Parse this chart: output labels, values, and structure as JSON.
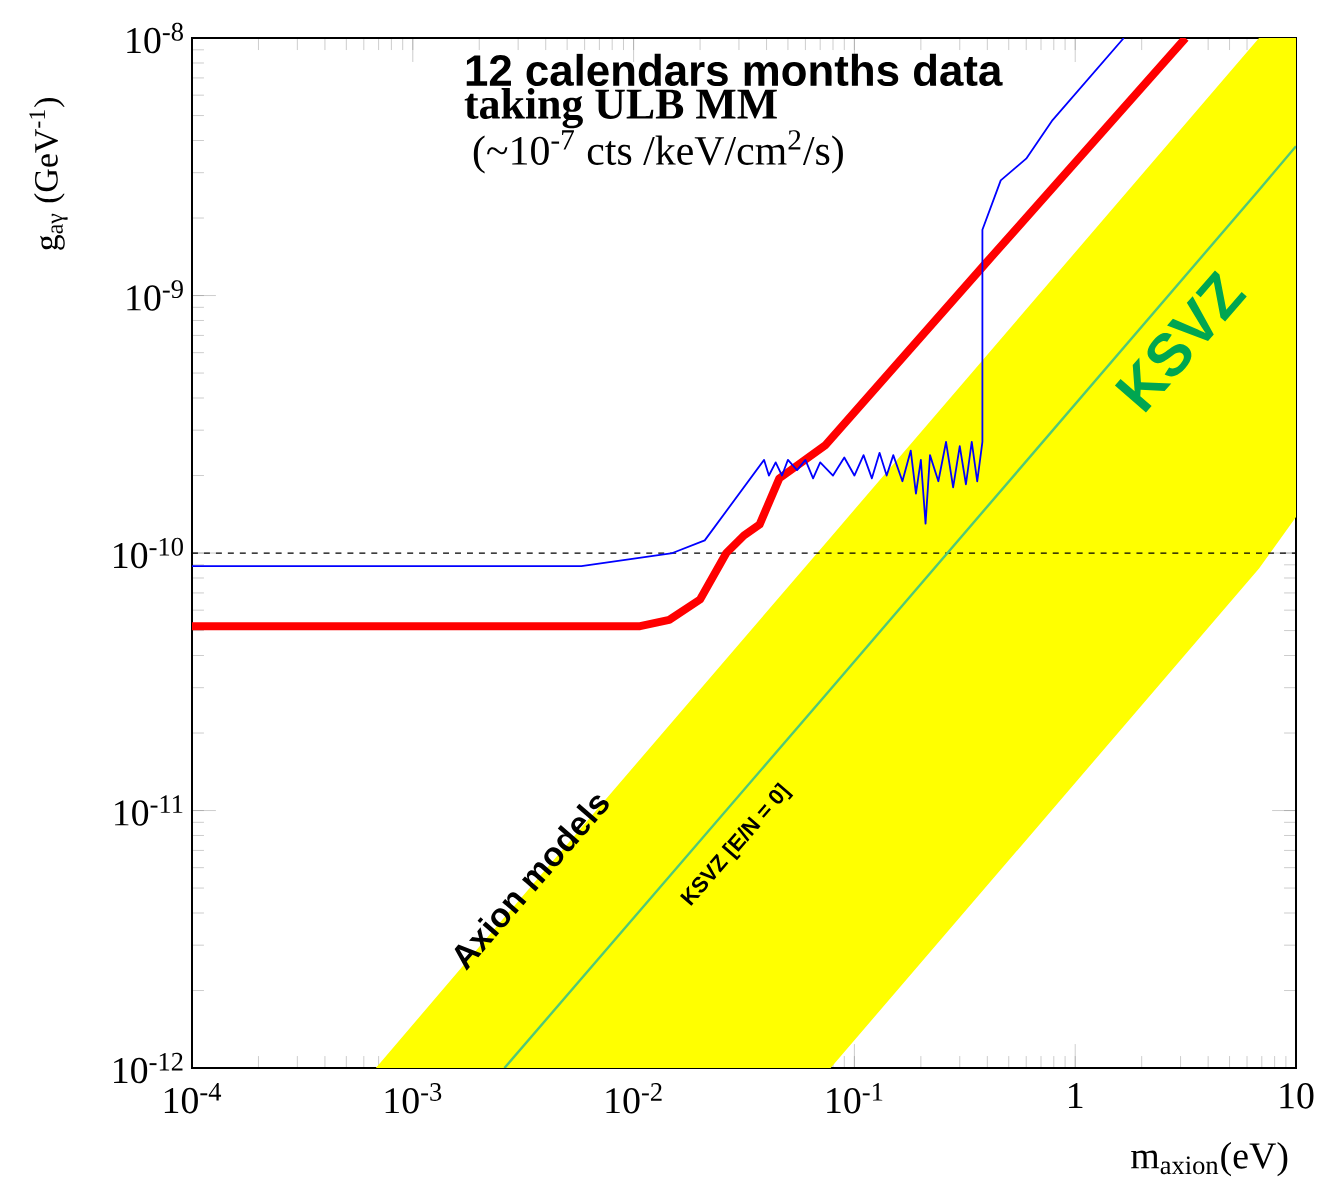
{
  "chart_data": {
    "type": "line",
    "xlabel": "m$_{axion}$(eV)",
    "ylabel": "g$_{aγ}$ (GeV$^{-1}$)",
    "log": "xy",
    "xlim": [
      0.0001,
      10
    ],
    "ylim": [
      1e-12,
      1e-08
    ],
    "xticks": [
      {
        "value": 0.0001,
        "label": "10$^{-4}$"
      },
      {
        "value": 0.001,
        "label": "10$^{-3}$"
      },
      {
        "value": 0.01,
        "label": "10$^{-2}$"
      },
      {
        "value": 0.1,
        "label": "10$^{-1}$"
      },
      1,
      10
    ],
    "yticks": [
      {
        "value": 1e-12,
        "label": "10$^{-12}$"
      },
      {
        "value": 1e-11,
        "label": "10$^{-11}$"
      },
      {
        "value": 1e-10,
        "label": "10$^{-10}$"
      },
      {
        "value": 1e-09,
        "label": "10$^{-9}$"
      },
      {
        "value": 1e-08,
        "label": "10$^{-8}$"
      }
    ],
    "series": [
      {
        "name": "KSVZ [E/N = 0]",
        "color": "#50c878",
        "x": [
          0.00068,
          0.0026,
          0.078,
          6.8,
          10
        ],
        "values": [
          null,
          1e-12,
          2.96e-11,
          2.57e-09,
          3.8e-09
        ],
        "upper": [
          1e-12,
          3.85e-12,
          1.15e-10,
          1e-08,
          1e-08
        ],
        "lower": [
          1e-12,
          1e-12,
          1e-12,
          8.7e-11,
          1.38e-10
        ]
      },
      {
        "color": "#ff0000",
        "x": [
          0.0001,
          0.0107,
          0.0145,
          0.02,
          0.0263,
          0.0316,
          0.0372,
          0.0457,
          0.0741,
          0.389,
          3.16
        ],
        "values": [
          5.2e-11,
          5.2e-11,
          5.5e-11,
          6.6e-11,
          1e-10,
          1.17e-10,
          1.29e-10,
          1.95e-10,
          2.63e-10,
          1.32e-09,
          1e-08
        ]
      },
      {
        "color": "#0000ff",
        "x": [
          0.0001,
          0.0058,
          0.015,
          0.021,
          0.039,
          0.041,
          0.044,
          0.047,
          0.05,
          0.055,
          0.06,
          0.065,
          0.07,
          0.08,
          0.09,
          0.1,
          0.11,
          0.12,
          0.13,
          0.14,
          0.15,
          0.165,
          0.18,
          0.19,
          0.2,
          0.21,
          0.22,
          0.24,
          0.26,
          0.28,
          0.3,
          0.32,
          0.34,
          0.36,
          0.38,
          0.38,
          0.46,
          0.6,
          0.79,
          1.66
        ],
        "values": [
          8.9e-11,
          8.9e-11,
          1e-10,
          1.12e-10,
          2.3e-10,
          2e-10,
          2.25e-10,
          2e-10,
          2.3e-10,
          2.1e-10,
          2.3e-10,
          1.95e-10,
          2.25e-10,
          2e-10,
          2.35e-10,
          2e-10,
          2.4e-10,
          1.95e-10,
          2.45e-10,
          2e-10,
          2.4e-10,
          1.9e-10,
          2.5e-10,
          1.7e-10,
          2.3e-10,
          1.3e-10,
          2.4e-10,
          1.9e-10,
          2.7e-10,
          1.8e-10,
          2.6e-10,
          1.85e-10,
          2.7e-10,
          1.9e-10,
          2.7e-10,
          1.8e-09,
          2.8e-09,
          3.4e-09,
          4.8e-09,
          1e-08
        ]
      }
    ],
    "ref_lines": [
      {
        "axis": "y",
        "value": 1e-10,
        "color": "#000000",
        "line_style": "dashed"
      }
    ],
    "annotations": [
      "12  calendars months data",
      "taking ULB MM",
      "(~10$^{-7}$ cts /keV/cm$^{2}$/s)",
      "KSVZ",
      "Axion models"
    ]
  }
}
